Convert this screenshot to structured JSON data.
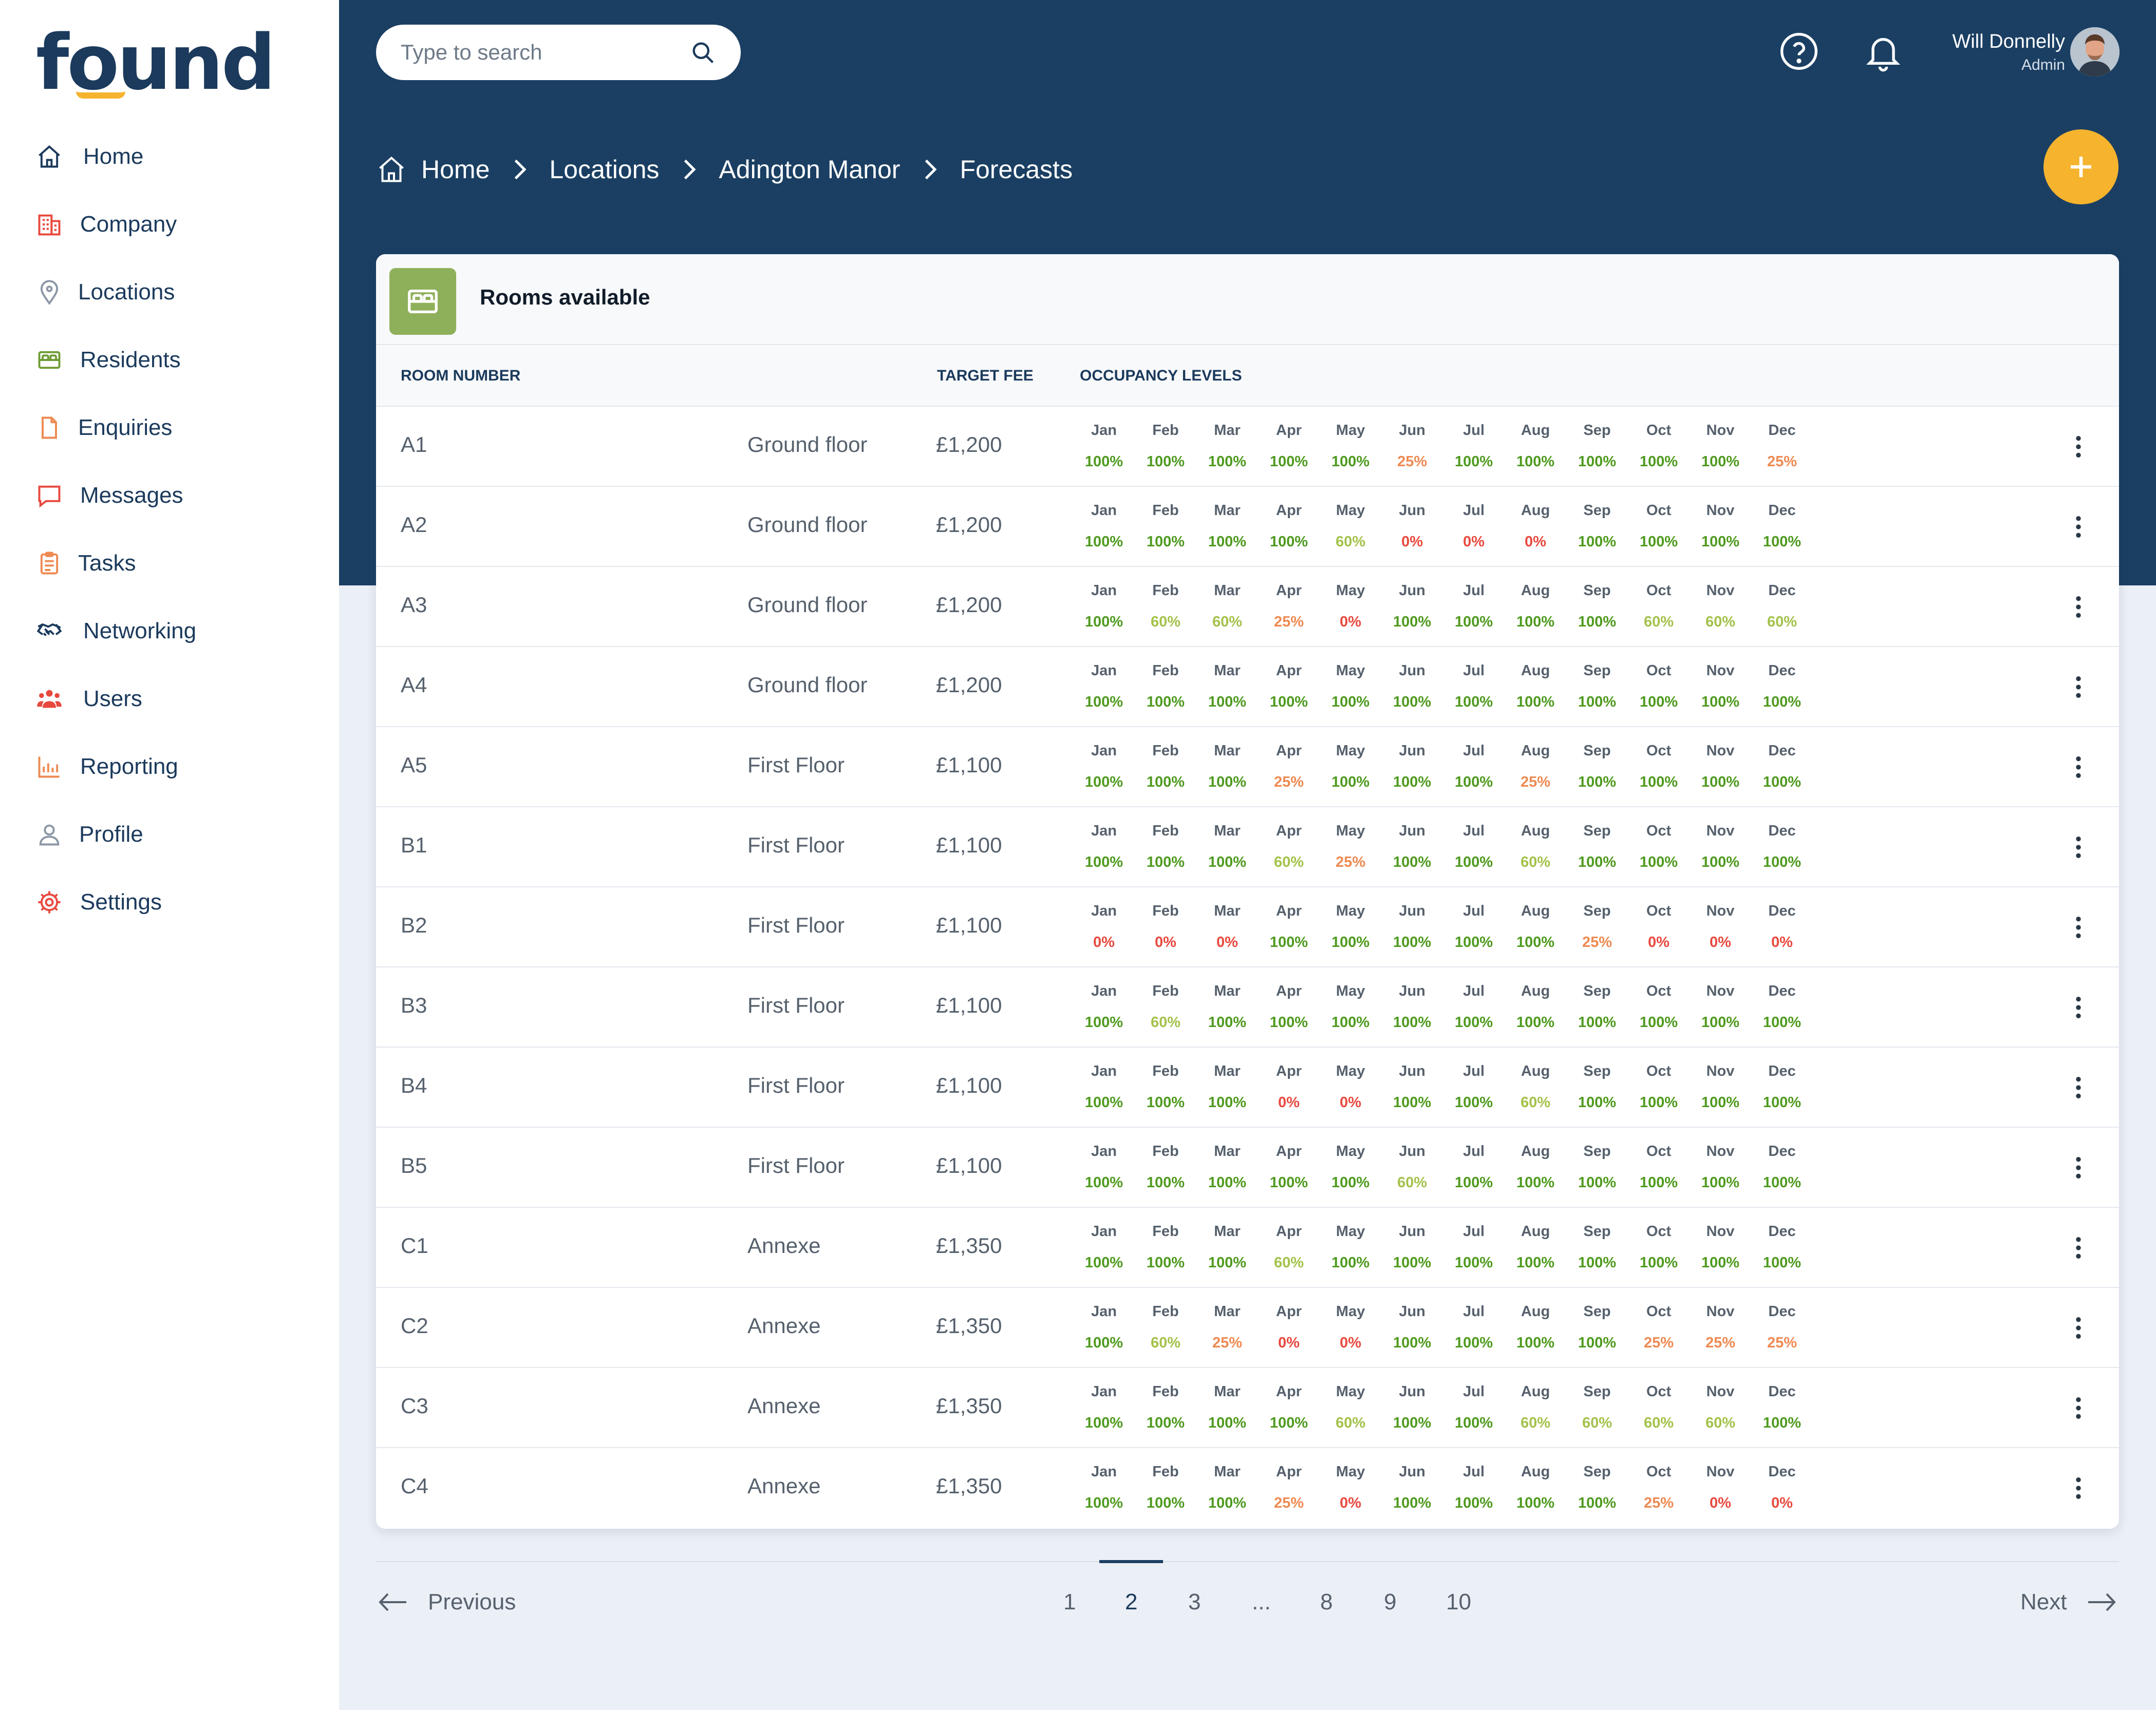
{
  "logo": "found",
  "sidebar": {
    "items": [
      {
        "label": "Home",
        "icon": "home-icon"
      },
      {
        "label": "Company",
        "icon": "building-icon"
      },
      {
        "label": "Locations",
        "icon": "location-pin-icon"
      },
      {
        "label": "Residents",
        "icon": "bed-icon"
      },
      {
        "label": "Enquiries",
        "icon": "document-icon"
      },
      {
        "label": "Messages",
        "icon": "chat-bubble-icon"
      },
      {
        "label": "Tasks",
        "icon": "clipboard-icon"
      },
      {
        "label": "Networking",
        "icon": "handshake-icon"
      },
      {
        "label": "Users",
        "icon": "users-icon"
      },
      {
        "label": "Reporting",
        "icon": "bar-chart-icon"
      },
      {
        "label": "Profile",
        "icon": "person-icon"
      },
      {
        "label": "Settings",
        "icon": "gear-icon"
      }
    ]
  },
  "header": {
    "search_placeholder": "Type to search",
    "user_name": "Will Donnelly",
    "user_role": "Admin",
    "breadcrumb": [
      "Home",
      "Locations",
      "Adington Manor",
      "Forecasts"
    ]
  },
  "card": {
    "title": "Rooms available",
    "columns": {
      "room": "ROOM NUMBER",
      "fee": "TARGET FEE",
      "occupancy": "OCCUPANCY LEVELS"
    },
    "months": [
      "Jan",
      "Feb",
      "Mar",
      "Apr",
      "May",
      "Jun",
      "Jul",
      "Aug",
      "Sep",
      "Oct",
      "Nov",
      "Dec"
    ],
    "rows": [
      {
        "room": "A1",
        "floor": "Ground floor",
        "fee": "£1,200",
        "occ": [
          "100%",
          "100%",
          "100%",
          "100%",
          "100%",
          "25%",
          "100%",
          "100%",
          "100%",
          "100%",
          "100%",
          "25%"
        ]
      },
      {
        "room": "A2",
        "floor": "Ground floor",
        "fee": "£1,200",
        "occ": [
          "100%",
          "100%",
          "100%",
          "100%",
          "60%",
          "0%",
          "0%",
          "0%",
          "100%",
          "100%",
          "100%",
          "100%"
        ]
      },
      {
        "room": "A3",
        "floor": "Ground floor",
        "fee": "£1,200",
        "occ": [
          "100%",
          "60%",
          "60%",
          "25%",
          "0%",
          "100%",
          "100%",
          "100%",
          "100%",
          "60%",
          "60%",
          "60%"
        ]
      },
      {
        "room": "A4",
        "floor": "Ground floor",
        "fee": "£1,200",
        "occ": [
          "100%",
          "100%",
          "100%",
          "100%",
          "100%",
          "100%",
          "100%",
          "100%",
          "100%",
          "100%",
          "100%",
          "100%"
        ]
      },
      {
        "room": "A5",
        "floor": "First Floor",
        "fee": "£1,100",
        "occ": [
          "100%",
          "100%",
          "100%",
          "25%",
          "100%",
          "100%",
          "100%",
          "25%",
          "100%",
          "100%",
          "100%",
          "100%"
        ]
      },
      {
        "room": "B1",
        "floor": "First Floor",
        "fee": "£1,100",
        "occ": [
          "100%",
          "100%",
          "100%",
          "60%",
          "25%",
          "100%",
          "100%",
          "60%",
          "100%",
          "100%",
          "100%",
          "100%"
        ]
      },
      {
        "room": "B2",
        "floor": "First Floor",
        "fee": "£1,100",
        "occ": [
          "0%",
          "0%",
          "0%",
          "100%",
          "100%",
          "100%",
          "100%",
          "100%",
          "25%",
          "0%",
          "0%",
          "0%"
        ]
      },
      {
        "room": "B3",
        "floor": "First Floor",
        "fee": "£1,100",
        "occ": [
          "100%",
          "60%",
          "100%",
          "100%",
          "100%",
          "100%",
          "100%",
          "100%",
          "100%",
          "100%",
          "100%",
          "100%"
        ]
      },
      {
        "room": "B4",
        "floor": "First Floor",
        "fee": "£1,100",
        "occ": [
          "100%",
          "100%",
          "100%",
          "0%",
          "0%",
          "100%",
          "100%",
          "60%",
          "100%",
          "100%",
          "100%",
          "100%"
        ]
      },
      {
        "room": "B5",
        "floor": "First Floor",
        "fee": "£1,100",
        "occ": [
          "100%",
          "100%",
          "100%",
          "100%",
          "100%",
          "60%",
          "100%",
          "100%",
          "100%",
          "100%",
          "100%",
          "100%"
        ]
      },
      {
        "room": "C1",
        "floor": "Annexe",
        "fee": "£1,350",
        "occ": [
          "100%",
          "100%",
          "100%",
          "60%",
          "100%",
          "100%",
          "100%",
          "100%",
          "100%",
          "100%",
          "100%",
          "100%"
        ]
      },
      {
        "room": "C2",
        "floor": "Annexe",
        "fee": "£1,350",
        "occ": [
          "100%",
          "60%",
          "25%",
          "0%",
          "0%",
          "100%",
          "100%",
          "100%",
          "100%",
          "25%",
          "25%",
          "25%"
        ]
      },
      {
        "room": "C3",
        "floor": "Annexe",
        "fee": "£1,350",
        "occ": [
          "100%",
          "100%",
          "100%",
          "100%",
          "60%",
          "100%",
          "100%",
          "60%",
          "60%",
          "60%",
          "60%",
          "100%"
        ]
      },
      {
        "room": "C4",
        "floor": "Annexe",
        "fee": "£1,350",
        "occ": [
          "100%",
          "100%",
          "100%",
          "25%",
          "0%",
          "100%",
          "100%",
          "100%",
          "100%",
          "25%",
          "0%",
          "0%"
        ]
      }
    ]
  },
  "pagination": {
    "previous": "Previous",
    "next": "Next",
    "pages": [
      "1",
      "2",
      "3",
      "...",
      "8",
      "9",
      "10"
    ],
    "current": "2"
  },
  "colors": {
    "occ_100": "#4e9a1e",
    "occ_60": "#a3c24a",
    "occ_25": "#ee8a52",
    "occ_0": "#e8493e",
    "header_bg": "#1b3f63",
    "accent": "#f5b32e",
    "card_icon_bg": "#8fb05b"
  }
}
